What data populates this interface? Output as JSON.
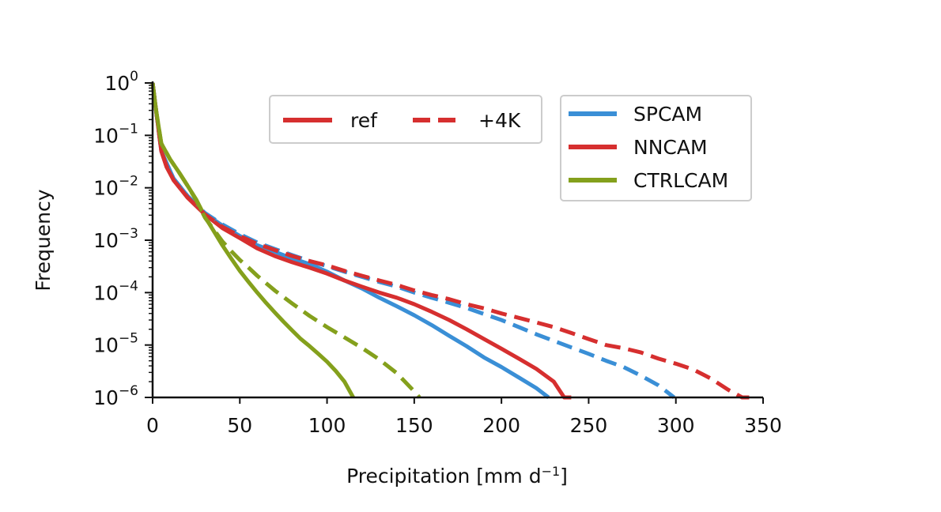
{
  "chart_data": {
    "type": "line",
    "title": "",
    "xlabel": "Precipitation [mm d",
    "xlabel_sup": "−1",
    "xlabel_close": "]",
    "ylabel": "Frequency",
    "xlim": [
      0,
      350
    ],
    "ylim": [
      1e-06,
      1
    ],
    "yscale": "log",
    "grid": false,
    "x_ticks": [
      0,
      50,
      100,
      150,
      200,
      250,
      300,
      350
    ],
    "x_tick_labels": [
      "0",
      "50",
      "100",
      "150",
      "200",
      "250",
      "300",
      "350"
    ],
    "y_ticks": [
      {
        "value": 1,
        "base": "10",
        "exp": "0"
      },
      {
        "value": 0.1,
        "base": "10",
        "exp": "−1"
      },
      {
        "value": 0.01,
        "base": "10",
        "exp": "−2"
      },
      {
        "value": 0.001,
        "base": "10",
        "exp": "−3"
      },
      {
        "value": 0.0001,
        "base": "10",
        "exp": "−4"
      },
      {
        "value": 1e-05,
        "base": "10",
        "exp": "−5"
      },
      {
        "value": 1e-06,
        "base": "10",
        "exp": "−6"
      }
    ],
    "legend_style": {
      "placement": "top-center",
      "entries": [
        {
          "label": "ref",
          "color": "#d62f2f",
          "dash": "solid"
        },
        {
          "label": "+4K",
          "color": "#d62f2f",
          "dash": "dashed"
        }
      ]
    },
    "legend_model": {
      "placement": "top-right",
      "entries": [
        {
          "label": "SPCAM",
          "color": "#3a8fd6"
        },
        {
          "label": "NNCAM",
          "color": "#d62f2f"
        },
        {
          "label": "CTRLCAM",
          "color": "#84a01c"
        }
      ]
    },
    "series": [
      {
        "name": "SPCAM",
        "scenario": "ref",
        "color": "#3a8fd6",
        "dash": "solid",
        "points": [
          [
            0,
            1
          ],
          [
            2,
            0.3
          ],
          [
            5,
            0.05
          ],
          [
            8,
            0.03
          ],
          [
            12,
            0.015
          ],
          [
            20,
            0.007
          ],
          [
            30,
            0.0032
          ],
          [
            40,
            0.0019
          ],
          [
            50,
            0.0012
          ],
          [
            60,
            0.0008
          ],
          [
            70,
            0.0006
          ],
          [
            80,
            0.00045
          ],
          [
            90,
            0.00035
          ],
          [
            100,
            0.00025
          ],
          [
            110,
            0.00017
          ],
          [
            120,
            0.00012
          ],
          [
            130,
            8e-05
          ],
          [
            140,
            5.5e-05
          ],
          [
            150,
            3.7e-05
          ],
          [
            160,
            2.4e-05
          ],
          [
            170,
            1.5e-05
          ],
          [
            180,
            9.5e-06
          ],
          [
            190,
            5.8e-06
          ],
          [
            200,
            3.8e-06
          ],
          [
            210,
            2.4e-06
          ],
          [
            220,
            1.5e-06
          ],
          [
            227,
            1e-06
          ]
        ]
      },
      {
        "name": "NNCAM",
        "scenario": "ref",
        "color": "#d62f2f",
        "dash": "solid",
        "points": [
          [
            0,
            1
          ],
          [
            2,
            0.3
          ],
          [
            5,
            0.05
          ],
          [
            8,
            0.025
          ],
          [
            12,
            0.014
          ],
          [
            20,
            0.0065
          ],
          [
            30,
            0.0031
          ],
          [
            40,
            0.0017
          ],
          [
            50,
            0.0011
          ],
          [
            60,
            0.0007
          ],
          [
            70,
            0.0005
          ],
          [
            80,
            0.00038
          ],
          [
            90,
            0.0003
          ],
          [
            100,
            0.00023
          ],
          [
            110,
            0.00017
          ],
          [
            120,
            0.00013
          ],
          [
            130,
            0.0001
          ],
          [
            140,
            8e-05
          ],
          [
            150,
            6e-05
          ],
          [
            160,
            4.3e-05
          ],
          [
            170,
            3e-05
          ],
          [
            180,
            2e-05
          ],
          [
            190,
            1.3e-05
          ],
          [
            200,
            8.5e-06
          ],
          [
            210,
            5.5e-06
          ],
          [
            220,
            3.5e-06
          ],
          [
            230,
            2e-06
          ],
          [
            236,
            1e-06
          ],
          [
            240,
            1e-06
          ]
        ]
      },
      {
        "name": "CTRLCAM",
        "scenario": "ref",
        "color": "#84a01c",
        "dash": "solid",
        "points": [
          [
            0,
            1
          ],
          [
            2,
            0.3
          ],
          [
            5,
            0.07
          ],
          [
            10,
            0.035
          ],
          [
            15,
            0.02
          ],
          [
            20,
            0.011
          ],
          [
            25,
            0.006
          ],
          [
            30,
            0.0028
          ],
          [
            35,
            0.0015
          ],
          [
            40,
            0.0008
          ],
          [
            45,
            0.00045
          ],
          [
            50,
            0.00026
          ],
          [
            55,
            0.00016
          ],
          [
            60,
            0.0001
          ],
          [
            65,
            6.4e-05
          ],
          [
            70,
            4.2e-05
          ],
          [
            75,
            2.8e-05
          ],
          [
            80,
            1.9e-05
          ],
          [
            85,
            1.3e-05
          ],
          [
            90,
            9.5e-06
          ],
          [
            95,
            6.8e-06
          ],
          [
            100,
            4.8e-06
          ],
          [
            105,
            3.2e-06
          ],
          [
            110,
            2e-06
          ],
          [
            115,
            1e-06
          ]
        ]
      },
      {
        "name": "SPCAM",
        "scenario": "+4K",
        "color": "#3a8fd6",
        "dash": "dashed",
        "points": [
          [
            0,
            1
          ],
          [
            2,
            0.3
          ],
          [
            5,
            0.05
          ],
          [
            8,
            0.028
          ],
          [
            12,
            0.015
          ],
          [
            20,
            0.007
          ],
          [
            30,
            0.0033
          ],
          [
            40,
            0.002
          ],
          [
            50,
            0.0013
          ],
          [
            60,
            0.0009
          ],
          [
            70,
            0.00068
          ],
          [
            80,
            0.00052
          ],
          [
            90,
            0.0004
          ],
          [
            100,
            0.00032
          ],
          [
            110,
            0.00025
          ],
          [
            120,
            0.0002
          ],
          [
            130,
            0.00016
          ],
          [
            140,
            0.00013
          ],
          [
            150,
            0.0001
          ],
          [
            160,
            8e-05
          ],
          [
            170,
            6.4e-05
          ],
          [
            180,
            5.1e-05
          ],
          [
            190,
            3.9e-05
          ],
          [
            200,
            3e-05
          ],
          [
            210,
            2.2e-05
          ],
          [
            220,
            1.6e-05
          ],
          [
            230,
            1.2e-05
          ],
          [
            240,
            9e-06
          ],
          [
            250,
            6.8e-06
          ],
          [
            260,
            5e-06
          ],
          [
            270,
            3.8e-06
          ],
          [
            280,
            2.6e-06
          ],
          [
            290,
            1.7e-06
          ],
          [
            299,
            1e-06
          ]
        ]
      },
      {
        "name": "NNCAM",
        "scenario": "+4K",
        "color": "#d62f2f",
        "dash": "dashed",
        "points": [
          [
            0,
            1
          ],
          [
            2,
            0.3
          ],
          [
            5,
            0.05
          ],
          [
            8,
            0.026
          ],
          [
            12,
            0.014
          ],
          [
            20,
            0.0066
          ],
          [
            30,
            0.0031
          ],
          [
            40,
            0.0018
          ],
          [
            50,
            0.0012
          ],
          [
            60,
            0.00085
          ],
          [
            70,
            0.00065
          ],
          [
            80,
            0.0005
          ],
          [
            90,
            0.0004
          ],
          [
            100,
            0.00033
          ],
          [
            110,
            0.00026
          ],
          [
            120,
            0.00021
          ],
          [
            130,
            0.00017
          ],
          [
            140,
            0.00014
          ],
          [
            150,
            0.00011
          ],
          [
            160,
            9e-05
          ],
          [
            170,
            7.5e-05
          ],
          [
            180,
            6e-05
          ],
          [
            190,
            5e-05
          ],
          [
            200,
            4e-05
          ],
          [
            210,
            3.3e-05
          ],
          [
            220,
            2.7e-05
          ],
          [
            230,
            2.2e-05
          ],
          [
            240,
            1.7e-05
          ],
          [
            250,
            1.3e-05
          ],
          [
            260,
            1e-05
          ],
          [
            270,
            8.7e-06
          ],
          [
            280,
            7.2e-06
          ],
          [
            290,
            5.5e-06
          ],
          [
            300,
            4.4e-06
          ],
          [
            310,
            3.4e-06
          ],
          [
            320,
            2.3e-06
          ],
          [
            330,
            1.4e-06
          ],
          [
            338,
            1e-06
          ],
          [
            342,
            1e-06
          ]
        ]
      },
      {
        "name": "CTRLCAM",
        "scenario": "+4K",
        "color": "#84a01c",
        "dash": "dashed",
        "points": [
          [
            0,
            1
          ],
          [
            2,
            0.3
          ],
          [
            5,
            0.07
          ],
          [
            10,
            0.035
          ],
          [
            15,
            0.02
          ],
          [
            20,
            0.011
          ],
          [
            25,
            0.0058
          ],
          [
            30,
            0.0027
          ],
          [
            35,
            0.0016
          ],
          [
            40,
            0.00095
          ],
          [
            45,
            0.00062
          ],
          [
            50,
            0.00042
          ],
          [
            55,
            0.0003
          ],
          [
            60,
            0.00021
          ],
          [
            70,
            0.00011
          ],
          [
            80,
            6.2e-05
          ],
          [
            90,
            3.6e-05
          ],
          [
            100,
            2.2e-05
          ],
          [
            110,
            1.4e-05
          ],
          [
            120,
            8.8e-06
          ],
          [
            130,
            5.3e-06
          ],
          [
            140,
            2.9e-06
          ],
          [
            150,
            1.3e-06
          ],
          [
            153,
            1e-06
          ]
        ]
      }
    ]
  }
}
